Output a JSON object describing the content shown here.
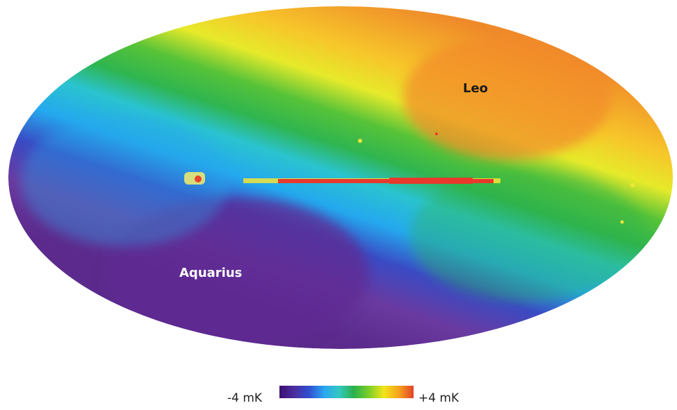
{
  "map": {
    "labels": {
      "leo": "Leo",
      "aquarius": "Aquarius"
    }
  },
  "scale": {
    "min_label": "-4 mK",
    "max_label": "+4 mK",
    "colors": [
      "#3c1070",
      "#4b2da0",
      "#2f4fd0",
      "#2aa6f0",
      "#33c8c0",
      "#2bb04a",
      "#7ccf2a",
      "#f2e51a",
      "#f6a31b",
      "#e2422a"
    ]
  }
}
